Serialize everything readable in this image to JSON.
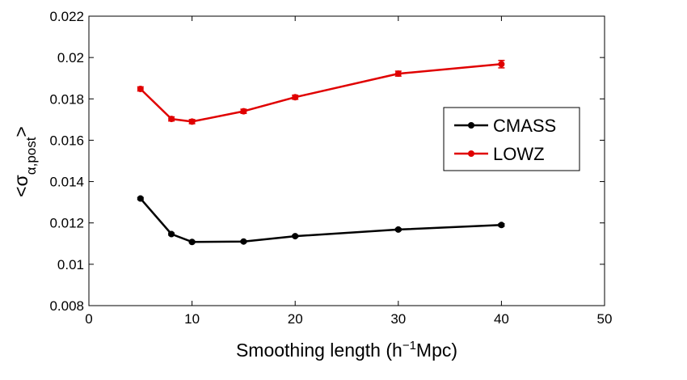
{
  "chart_data": {
    "type": "line",
    "title": "",
    "xlabel": "Smoothing length (h",
    "xlabel_sup": "−1",
    "xlabel_tail": "Mpc)",
    "ylabel_open": "<σ",
    "ylabel_sub": "α,post",
    "ylabel_close": ">",
    "xlim": [
      0,
      50
    ],
    "ylim": [
      0.008,
      0.022
    ],
    "xticks": [
      0,
      10,
      20,
      30,
      40,
      50
    ],
    "xtick_labels": [
      "0",
      "10",
      "20",
      "30",
      "40",
      "50"
    ],
    "yticks": [
      0.008,
      0.01,
      0.012,
      0.014,
      0.016,
      0.018,
      0.02,
      0.022
    ],
    "ytick_labels": [
      "0.008",
      "0.01",
      "0.012",
      "0.014",
      "0.016",
      "0.018",
      "0.02",
      "0.022"
    ],
    "grid": false,
    "legend_position": "right",
    "series": [
      {
        "name": "CMASS",
        "color": "#000000",
        "x": [
          5,
          8,
          10,
          15,
          20,
          30,
          40
        ],
        "y": [
          0.01318,
          0.01146,
          0.01108,
          0.0111,
          0.01136,
          0.01168,
          0.0119
        ],
        "err": [
          5e-05,
          5e-05,
          4e-05,
          4e-05,
          4e-05,
          5e-05,
          6e-05
        ]
      },
      {
        "name": "LOWZ",
        "color": "#e00000",
        "x": [
          5,
          8,
          10,
          15,
          20,
          30,
          40
        ],
        "y": [
          0.01848,
          0.01703,
          0.0169,
          0.0174,
          0.01808,
          0.01922,
          0.01968
        ],
        "err": [
          0.0001,
          0.0001,
          0.0001,
          0.0001,
          0.0001,
          0.00012,
          0.00018
        ]
      }
    ]
  }
}
